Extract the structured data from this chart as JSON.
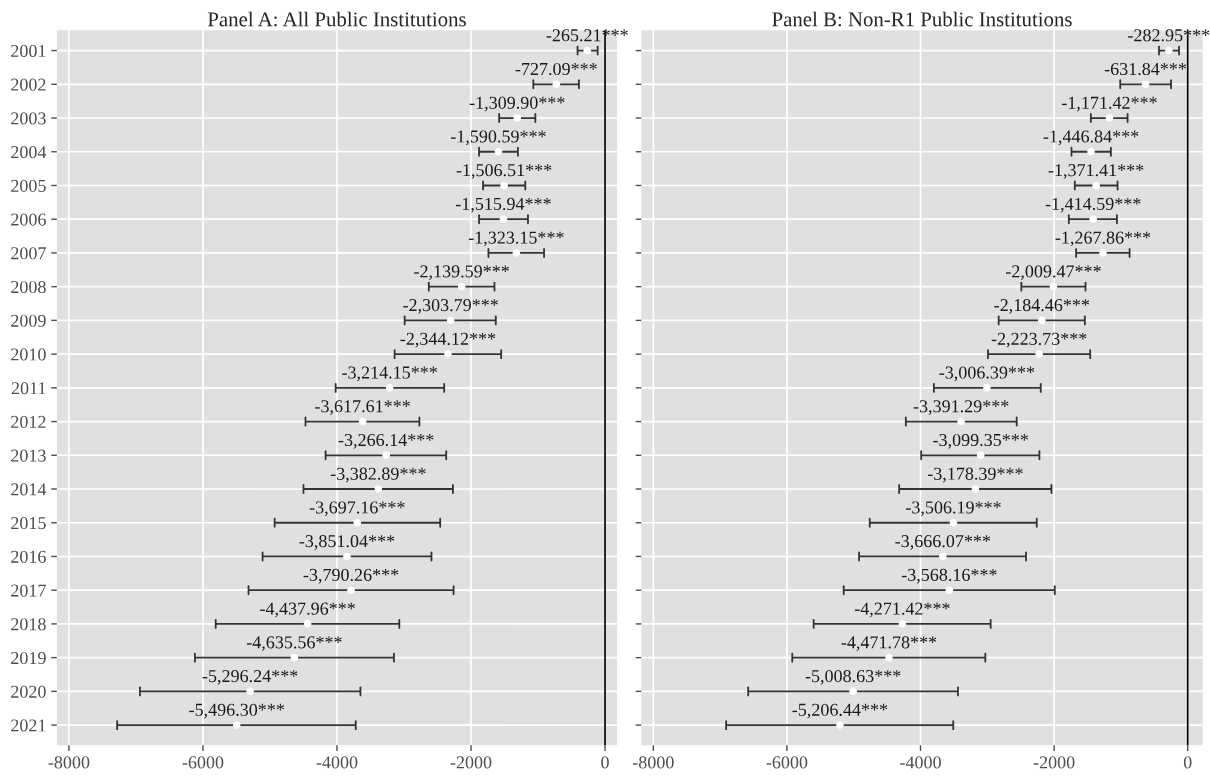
{
  "chart_data": [
    {
      "type": "scatter",
      "title": "Panel A: All Public Institutions",
      "orientation": "horizontal",
      "categories": [
        "2001",
        "2002",
        "2003",
        "2004",
        "2005",
        "2006",
        "2007",
        "2008",
        "2009",
        "2010",
        "2011",
        "2012",
        "2013",
        "2014",
        "2015",
        "2016",
        "2017",
        "2018",
        "2019",
        "2020",
        "2021"
      ],
      "series": [
        {
          "color": "#ffffff",
          "values": [
            -265.21,
            -727.09,
            -1309.9,
            -1590.59,
            -1506.51,
            -1515.94,
            -1323.15,
            -2139.59,
            -2303.79,
            -2344.12,
            -3214.15,
            -3617.61,
            -3266.14,
            -3382.89,
            -3697.16,
            -3851.04,
            -3790.26,
            -4437.96,
            -4635.56,
            -5296.24,
            -5496.3
          ],
          "errors": [
            [
              -410,
              -110
            ],
            [
              -1070,
              -390
            ],
            [
              -1580,
              -1040
            ],
            [
              -1880,
              -1300
            ],
            [
              -1820,
              -1190
            ],
            [
              -1880,
              -1150
            ],
            [
              -1740,
              -910
            ],
            [
              -2630,
              -1650
            ],
            [
              -2990,
              -1630
            ],
            [
              -3140,
              -1550
            ],
            [
              -4020,
              -2400
            ],
            [
              -4470,
              -2770
            ],
            [
              -4170,
              -2370
            ],
            [
              -4500,
              -2270
            ],
            [
              -4930,
              -2460
            ],
            [
              -5110,
              -2590
            ],
            [
              -5320,
              -2260
            ],
            [
              -5810,
              -3070
            ],
            [
              -6120,
              -3150
            ],
            [
              -6940,
              -3650
            ],
            [
              -7280,
              -3720
            ]
          ],
          "value_labels": [
            "-265.21***",
            "-727.09***",
            "-1,309.90***",
            "-1,590.59***",
            "-1,506.51***",
            "-1,515.94***",
            "-1,323.15***",
            "-2,139.59***",
            "-2,303.79***",
            "-2,344.12***",
            "-3,214.15***",
            "-3,617.61***",
            "-3,266.14***",
            "-3,382.89***",
            "-3,697.16***",
            "-3,851.04***",
            "-3,790.26***",
            "-4,437.96***",
            "-4,635.56***",
            "-5,296.24***",
            "-5,496.30***"
          ]
        }
      ],
      "xlim": [
        -8180,
        180
      ],
      "xticks": [
        -8000,
        -6000,
        -4000,
        -2000,
        0
      ],
      "grid": true,
      "marker": "circle",
      "ref_lines": [
        {
          "axis": "x",
          "value": 0,
          "color": "#000000"
        }
      ]
    },
    {
      "type": "scatter",
      "title": "Panel B: Non-R1 Public Institutions",
      "orientation": "horizontal",
      "categories": [
        "2001",
        "2002",
        "2003",
        "2004",
        "2005",
        "2006",
        "2007",
        "2008",
        "2009",
        "2010",
        "2011",
        "2012",
        "2013",
        "2014",
        "2015",
        "2016",
        "2017",
        "2018",
        "2019",
        "2020",
        "2021"
      ],
      "series": [
        {
          "color": "#ffffff",
          "values": [
            -282.95,
            -631.84,
            -1171.42,
            -1446.84,
            -1371.41,
            -1414.59,
            -1267.86,
            -2009.47,
            -2184.46,
            -2223.73,
            -3006.39,
            -3391.29,
            -3099.35,
            -3178.39,
            -3506.19,
            -3666.07,
            -3568.16,
            -4271.42,
            -4471.78,
            -5008.63,
            -5206.44
          ],
          "errors": [
            [
              -430,
              -130
            ],
            [
              -1010,
              -250
            ],
            [
              -1450,
              -900
            ],
            [
              -1740,
              -1150
            ],
            [
              -1690,
              -1050
            ],
            [
              -1780,
              -1060
            ],
            [
              -1670,
              -870
            ],
            [
              -2490,
              -1530
            ],
            [
              -2830,
              -1540
            ],
            [
              -2990,
              -1460
            ],
            [
              -3800,
              -2200
            ],
            [
              -4220,
              -2560
            ],
            [
              -3990,
              -2220
            ],
            [
              -4320,
              -2040
            ],
            [
              -4760,
              -2260
            ],
            [
              -4920,
              -2420
            ],
            [
              -5150,
              -1990
            ],
            [
              -5600,
              -2950
            ],
            [
              -5920,
              -3030
            ],
            [
              -6580,
              -3440
            ],
            [
              -6910,
              -3510
            ]
          ],
          "value_labels": [
            "-282.95***",
            "-631.84***",
            "-1,171.42***",
            "-1,446.84***",
            "-1,371.41***",
            "-1,414.59***",
            "-1,267.86***",
            "-2,009.47***",
            "-2,184.46***",
            "-2,223.73***",
            "-3,006.39***",
            "-3,391.29***",
            "-3,099.35***",
            "-3,178.39***",
            "-3,506.19***",
            "-3,666.07***",
            "-3,568.16***",
            "-4,271.42***",
            "-4,471.78***",
            "-5,008.63***",
            "-5,206.44***"
          ]
        }
      ],
      "xlim": [
        -8180,
        225
      ],
      "xticks": [
        -8000,
        -6000,
        -4000,
        -2000,
        0
      ],
      "grid": true,
      "marker": "circle",
      "tick_labels": "x",
      "ref_lines": [
        {
          "axis": "x",
          "value": 0,
          "color": "#000000"
        }
      ]
    }
  ]
}
